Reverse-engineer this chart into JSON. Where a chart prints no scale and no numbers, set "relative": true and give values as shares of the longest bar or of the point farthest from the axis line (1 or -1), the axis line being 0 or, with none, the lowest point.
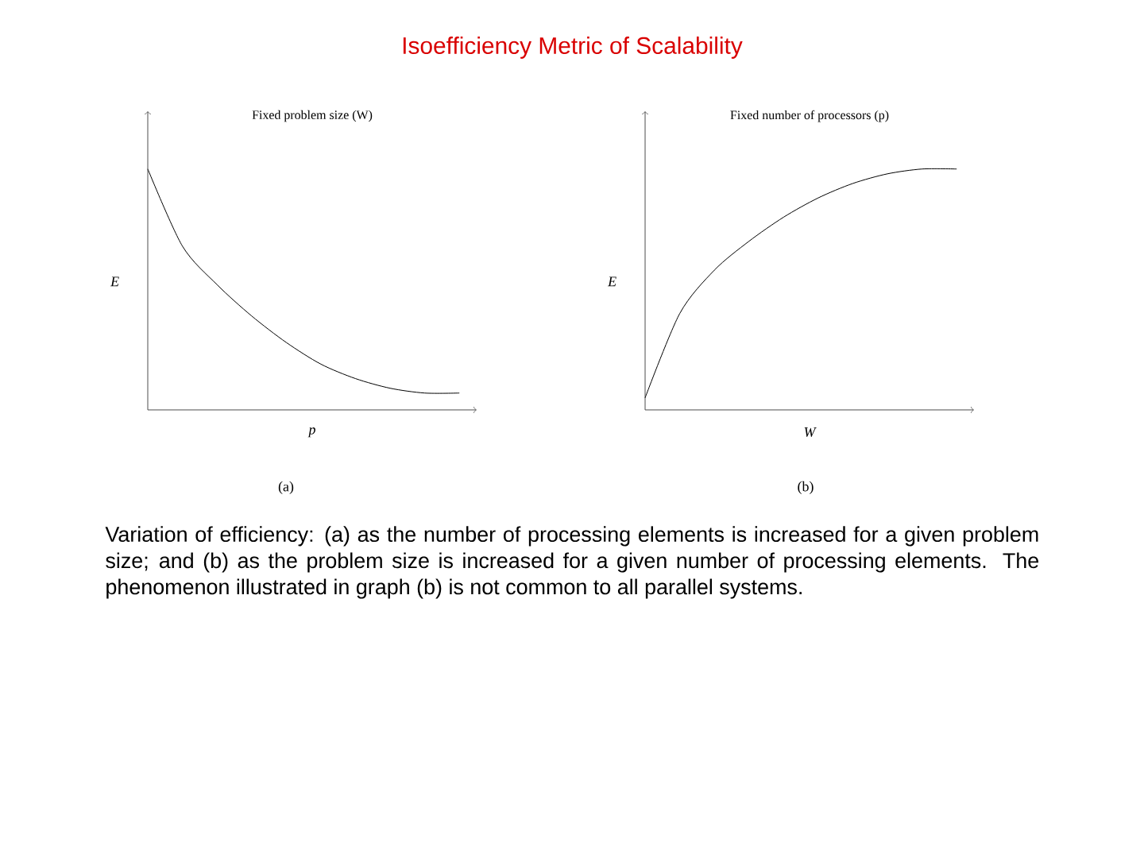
{
  "chart_data": [
    {
      "type": "line",
      "relative": true,
      "title": "Fixed problem size (W)",
      "xlabel": "p",
      "ylabel": "E",
      "categories": [
        null,
        null,
        null,
        null,
        null,
        null,
        null,
        null,
        null,
        null
      ],
      "series": [
        {
          "color": "#000000",
          "values": [
            1,
            0.68,
            0.52,
            0.39,
            0.28,
            0.19,
            0.13,
            0.09,
            0.07,
            0.07
          ]
        }
      ],
      "annotations": [
        "Isoefficiency Metric of Scalability",
        "(a)",
        "Variation of efficiency: (a) as the number of processing elements is increased for a given problem size; and (b) as the problem size is increased for a given number of processing elements. The phenomenon illustrated in graph (b) is not common to all parallel systems."
      ]
    },
    {
      "type": "line",
      "relative": true,
      "title": "Fixed number of processors (p)",
      "xlabel": "W",
      "ylabel": "E",
      "categories": [
        null,
        null,
        null,
        null,
        null,
        null,
        null,
        null,
        null,
        null
      ],
      "series": [
        {
          "color": "#000000",
          "values": [
            0.05,
            0.4,
            0.58,
            0.7,
            0.8,
            0.88,
            0.94,
            0.98,
            1.0,
            1.0
          ]
        }
      ],
      "annotations": [
        "(b)"
      ]
    }
  ]
}
